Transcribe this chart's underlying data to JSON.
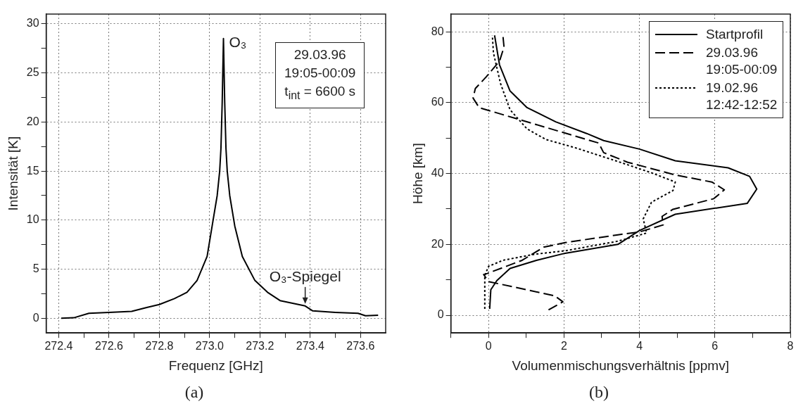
{
  "chart_data": [
    {
      "type": "line",
      "title": "(a)",
      "xlabel": "Frequenz [GHz]",
      "ylabel": "Intensität [K]",
      "xlim": [
        272.35,
        273.7
      ],
      "ylim": [
        -1.5,
        31
      ],
      "xticks": [
        272.4,
        {
          "value": 272.5,
          "label": null
        },
        272.6,
        {
          "value": 272.7,
          "label": null
        },
        272.8,
        {
          "value": 272.9,
          "label": null
        },
        {
          "value": 273.0,
          "label": "273.0"
        },
        {
          "value": 273.1,
          "label": null
        },
        273.2,
        {
          "value": 273.3,
          "label": null
        },
        273.4,
        {
          "value": 273.5,
          "label": null
        },
        273.6
      ],
      "yticks": [
        0,
        {
          "value": 2.5,
          "label": null
        },
        5,
        {
          "value": 7.5,
          "label": null
        },
        10,
        {
          "value": 12.5,
          "label": null
        },
        15,
        {
          "value": 17.5,
          "label": null
        },
        20,
        {
          "value": 22.5,
          "label": null
        },
        25,
        {
          "value": 27.5,
          "label": null
        },
        30
      ],
      "grid": true,
      "legend": false,
      "marker": "none",
      "line_style": "solid",
      "series": [
        {
          "color": "#000000",
          "x": [
            272.41,
            272.46,
            272.52,
            272.6,
            272.69,
            272.75,
            272.8,
            272.86,
            272.91,
            272.95,
            272.99,
            273.01,
            273.03,
            273.04,
            273.045,
            273.05,
            273.055,
            273.06,
            273.065,
            273.07,
            273.08,
            273.1,
            273.13,
            273.18,
            273.23,
            273.28,
            273.38,
            273.41,
            273.5,
            273.59,
            273.62,
            273.67
          ],
          "values": [
            0,
            0.05,
            0.5,
            0.6,
            0.7,
            1.1,
            1.4,
            2.0,
            2.65,
            3.85,
            6.3,
            9.4,
            12.5,
            15,
            17.3,
            22,
            28.5,
            22,
            17.3,
            15,
            12.5,
            9.4,
            6.3,
            3.85,
            2.65,
            1.8,
            1.25,
            0.75,
            0.6,
            0.5,
            0.25,
            0.3
          ]
        }
      ],
      "annotations": [
        {
          "text": "O₃",
          "x": 273.055,
          "y": 28.5
        },
        {
          "text": "O₃-Spiegel",
          "x": 273.38,
          "y": 1.25
        },
        "29.03.96",
        "19:05-00:09",
        "t$_{int}$ = 6600 s"
      ]
    },
    {
      "type": "line",
      "title": "(b)",
      "xlabel": "Volumenmischungsverhältnis [ppmv]",
      "ylabel": "Höhe [km]",
      "xlim": [
        -1,
        8
      ],
      "ylim": [
        -5,
        85
      ],
      "xticks": [
        {
          "value": -1,
          "label": null
        },
        0,
        {
          "value": 1,
          "label": null
        },
        2,
        {
          "value": 3,
          "label": null
        },
        4,
        {
          "value": 5,
          "label": null
        },
        6,
        {
          "value": 7,
          "label": null
        },
        8
      ],
      "yticks": [
        0,
        {
          "value": 10,
          "label": null
        },
        20,
        {
          "value": 30,
          "label": null
        },
        40,
        {
          "value": 50,
          "label": null
        },
        60,
        {
          "value": 70,
          "label": null
        },
        80
      ],
      "grid": true,
      "legend": "top right",
      "marker": "none",
      "series": [
        {
          "name": "Startprofil",
          "color": "#000000",
          "line_style": "solid",
          "x": [
            0.03,
            0.06,
            0.22,
            0.57,
            1.27,
            2.03,
            3.43,
            4.0,
            4.95,
            6.86,
            7.11,
            6.92,
            6.35,
            4.95,
            4.0,
            3.05,
            2.6,
            1.78,
            1.02,
            0.57,
            0.29,
            0.16
          ],
          "values": [
            1.8,
            7.2,
            9.8,
            13.2,
            15.5,
            17.5,
            20,
            23.9,
            28.5,
            31.6,
            35.6,
            39.2,
            41.6,
            43.6,
            46.9,
            49.3,
            51.3,
            54.6,
            58.6,
            63.3,
            70.7,
            79
          ]
        },
        {
          "name": "29.03.96\n19:05-00:09",
          "color": "#000000",
          "line_style": "dashed",
          "x": [
            1.59,
            1.97,
            1.75,
            0.0,
            -0.13,
            -0.03,
            0.89,
            1.46,
            2.03,
            3.43,
            4.0,
            4.63,
            4.6,
            4.89,
            5.97,
            6.25,
            5.92,
            4.95,
            3.68,
            3.05,
            2.92,
            1.65,
            0.7,
            -0.25,
            -0.41,
            -0.35,
            -0.06,
            0.29,
            0.41,
            0.38
          ],
          "values": [
            1.5,
            3.8,
            5.5,
            9.5,
            11.5,
            11.8,
            15.5,
            19.2,
            20.5,
            22.7,
            23.5,
            25.5,
            27.9,
            29.9,
            32.9,
            35.4,
            37.6,
            39.6,
            43.2,
            45.9,
            48.6,
            52.6,
            55.6,
            58.6,
            61.3,
            64,
            67.3,
            71.7,
            75.7,
            79
          ]
        },
        {
          "name": "19.02.96\n12:42-12:52",
          "color": "#000000",
          "line_style": "dotted",
          "x": [
            -0.1,
            -0.1,
            0,
            0.38,
            1.21,
            2.03,
            3.43,
            4.19,
            4.1,
            4.32,
            4.89,
            4.95,
            4.32,
            3.37,
            2.29,
            1.52,
            1.02,
            0.57,
            0.32,
            0.13,
            0.1
          ],
          "values": [
            1.8,
            11.2,
            13.8,
            15.5,
            17.2,
            18.2,
            20.9,
            23.2,
            27.2,
            31.9,
            35.2,
            37.6,
            40.2,
            43.6,
            47.3,
            49.6,
            52.6,
            58,
            65.3,
            74,
            79
          ]
        }
      ]
    }
  ]
}
